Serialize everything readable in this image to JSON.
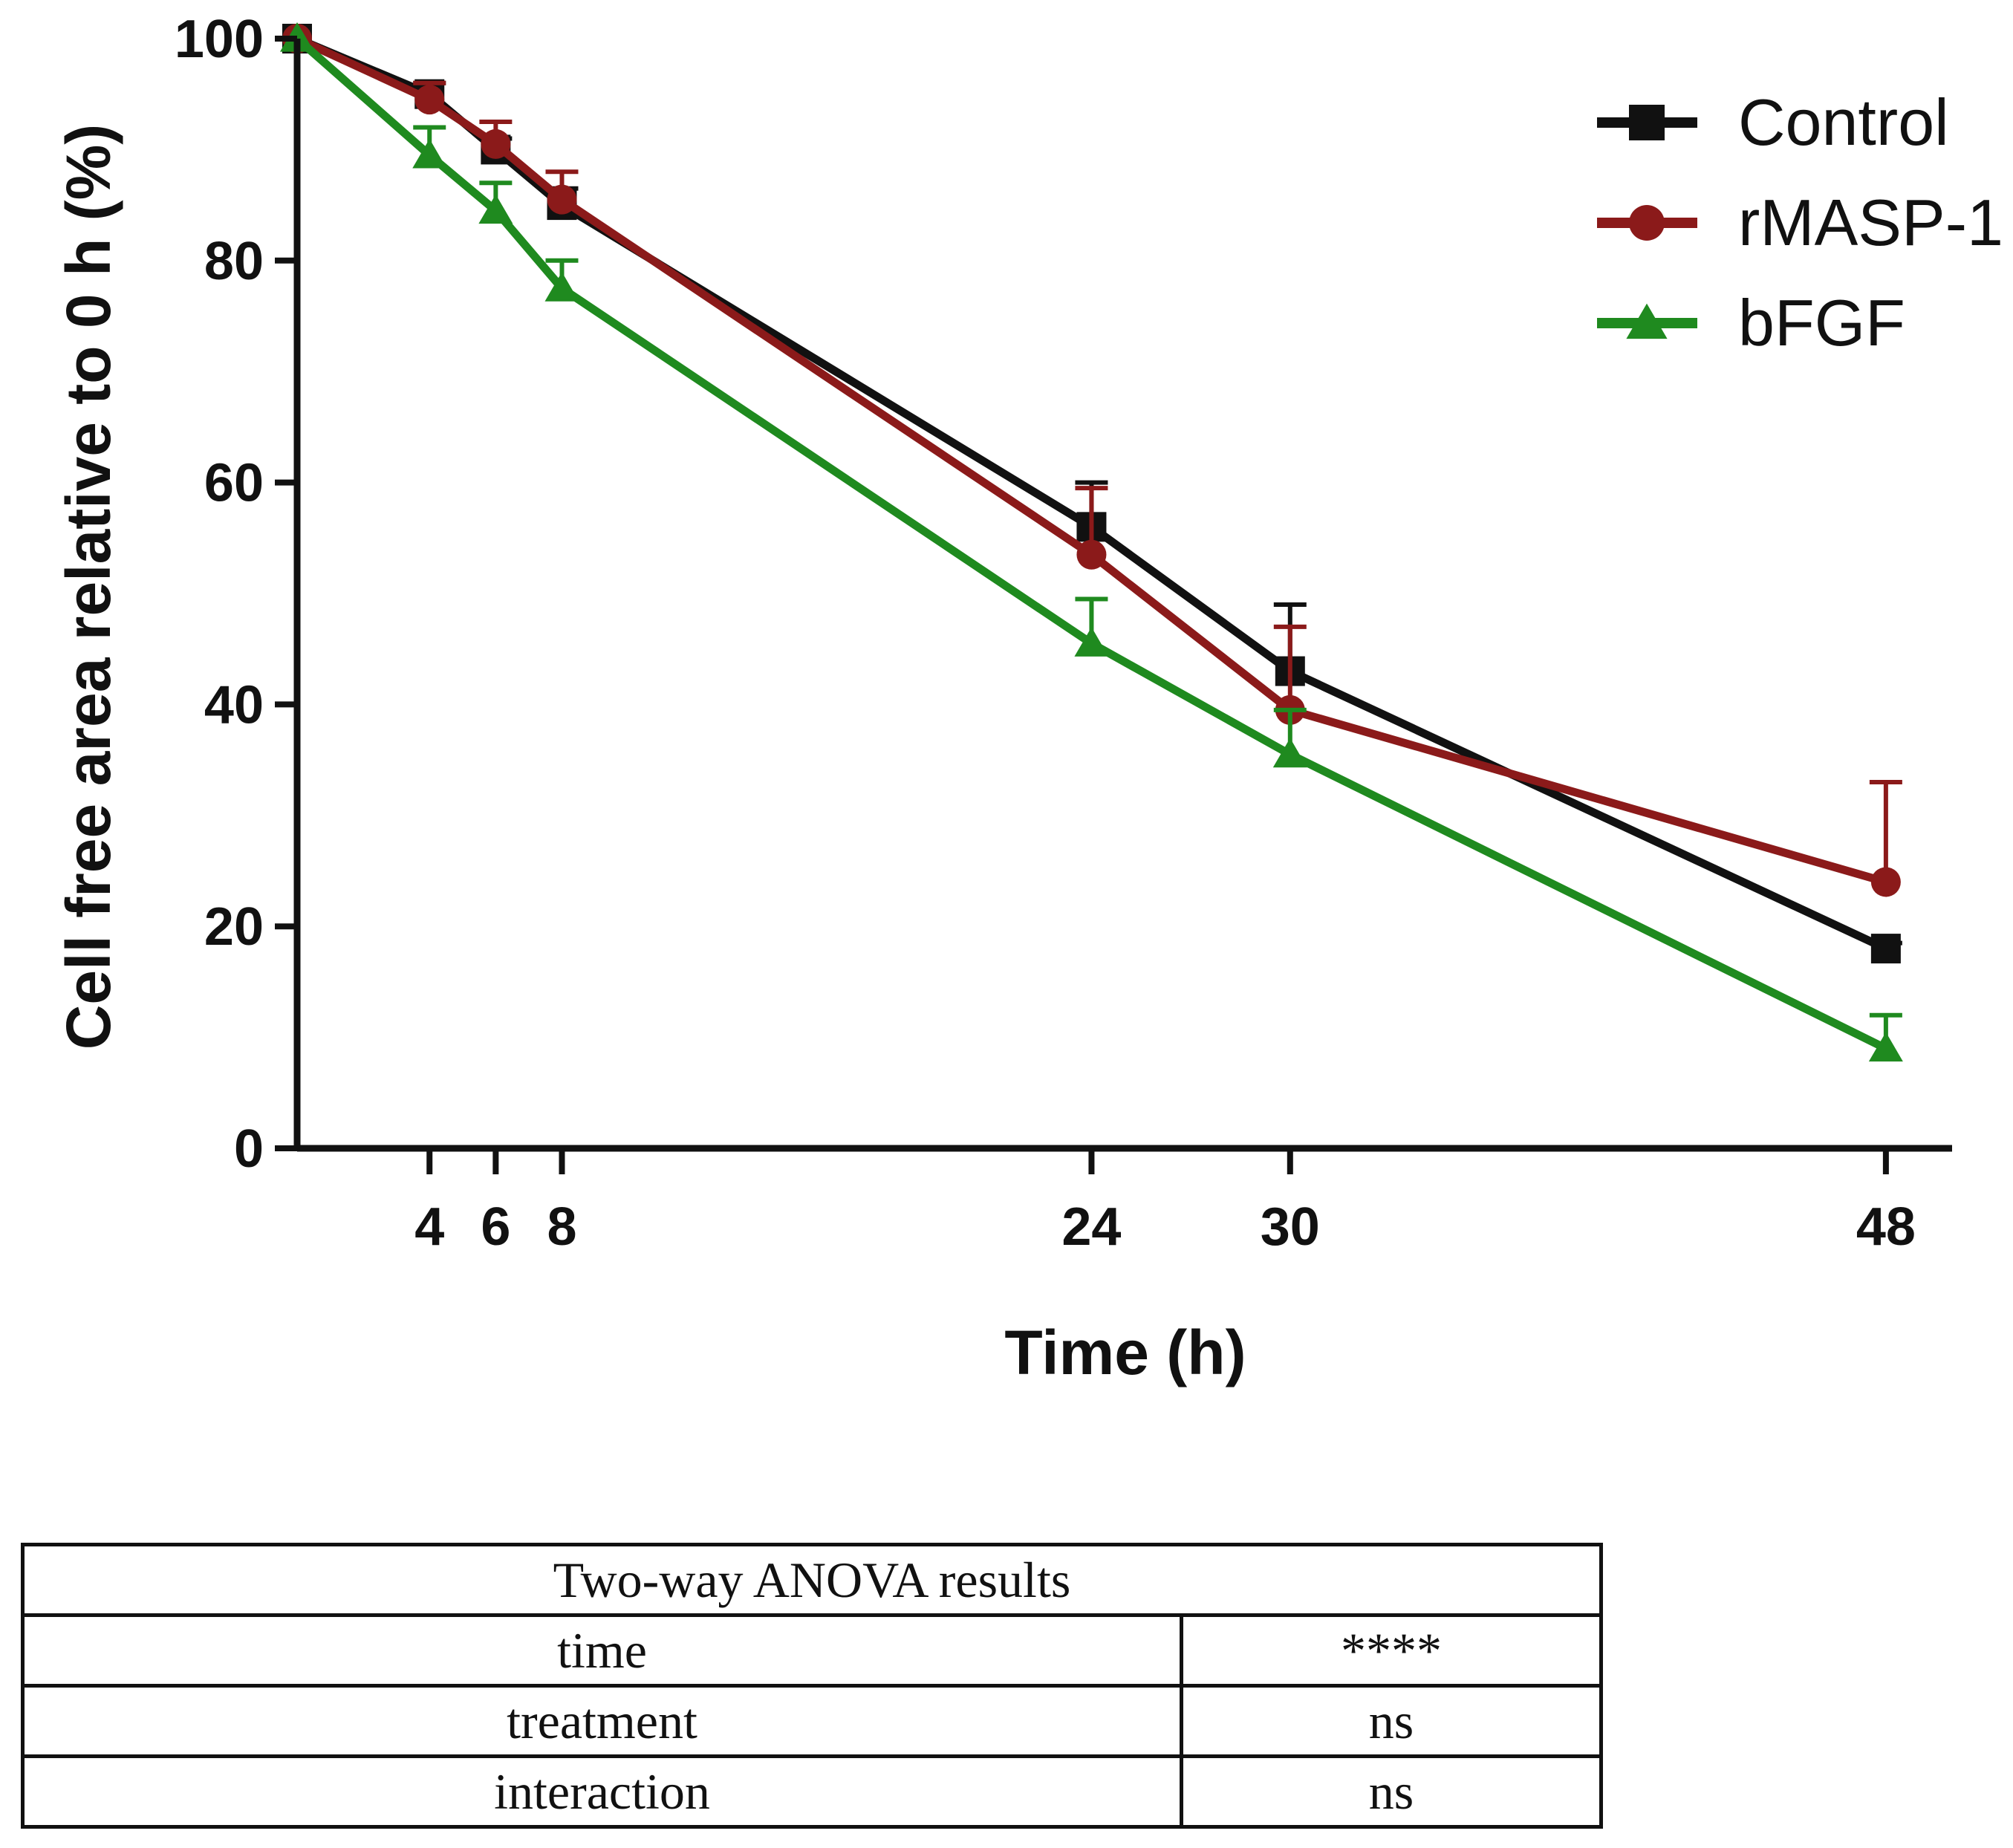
{
  "chart_data": {
    "type": "line",
    "title": "",
    "xlabel": "Time (h)",
    "ylabel": "Cell free area relative to 0 h (%)",
    "x": [
      0,
      4,
      6,
      8,
      24,
      30,
      48
    ],
    "x_ticks": [
      4,
      6,
      8,
      24,
      30,
      48
    ],
    "x_tick_labels": [
      "4",
      "6",
      "8",
      "24",
      "30",
      "48"
    ],
    "xlim": [
      0,
      50
    ],
    "ylim": [
      0,
      100
    ],
    "y_ticks": [
      0,
      20,
      40,
      60,
      80,
      100
    ],
    "y_tick_labels": [
      "0",
      "20",
      "40",
      "60",
      "80",
      "100"
    ],
    "grid": false,
    "legend_position": "top-right",
    "series": [
      {
        "name": "Control",
        "color": "#111111",
        "marker": "square",
        "values": [
          100,
          95,
          90,
          85,
          56,
          43,
          18
        ],
        "error": [
          0,
          1,
          1,
          1.5,
          4,
          6,
          0.5
        ]
      },
      {
        "name": "rMASP-1",
        "color": "#8b1a1a",
        "marker": "circle",
        "values": [
          100,
          94.5,
          90.5,
          85.5,
          53.5,
          39.5,
          24
        ],
        "error": [
          0,
          1.5,
          2,
          2.5,
          6,
          7.5,
          9
        ]
      },
      {
        "name": "bFGF",
        "color": "#1f8a1f",
        "marker": "triangle",
        "values": [
          100,
          89.5,
          84.5,
          77.5,
          45.5,
          35.5,
          9
        ],
        "error": [
          0,
          2.5,
          2.5,
          2.5,
          4,
          4,
          3
        ]
      }
    ]
  },
  "anova_table": {
    "header": "Two-way ANOVA results",
    "rows": [
      {
        "label": "time",
        "value": "****"
      },
      {
        "label": "treatment",
        "value": "ns"
      },
      {
        "label": "interaction",
        "value": "ns"
      }
    ]
  }
}
